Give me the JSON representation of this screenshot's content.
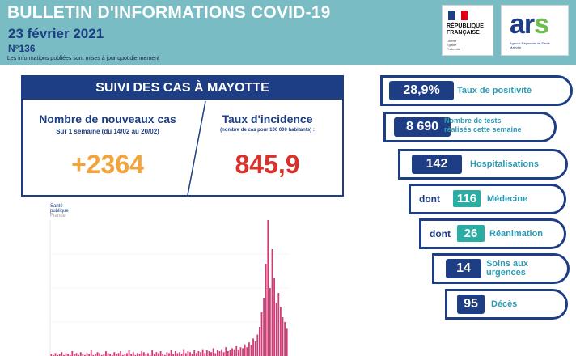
{
  "header": {
    "title": "BULLETIN D'INFORMATIONS COVID-19",
    "date": "23 février 2021",
    "number": "N°136",
    "note": "Les informations publiées sont mises à jour quotidiennement",
    "logo_rf": {
      "line1": "RÉPUBLIQUE",
      "line2": "FRANÇAISE",
      "motto1": "Liberté",
      "motto2": "Égalité",
      "motto3": "Fraternité"
    },
    "logo_ars": {
      "text_a": "ar",
      "text_s": "s",
      "sub1": "Agence Régionale de Santé",
      "sub2": "Mayotte"
    }
  },
  "suivi": {
    "heading": "SUIVI DES CAS À MAYOTTE",
    "left_title": "Nombre de nouveaux cas",
    "left_sub": "Sur 1 semaine (du 14/02 au 20/02)",
    "left_value": "+2364",
    "right_title": "Taux d'incidence",
    "right_sub": "(nombre de cas pour 100 000 habitants) :",
    "right_value": "845,9"
  },
  "sante_publique": {
    "line1": "Santé",
    "line2": "publique",
    "line3": "France"
  },
  "indicators": [
    {
      "value": "28,9%",
      "label": "Taux de positivité"
    },
    {
      "value": "8 690",
      "label_line1": "Nombre de tests",
      "label_line2": "réalisés cette semaine"
    },
    {
      "value": "142",
      "label": "Hospitalisations"
    },
    {
      "prefix": "dont",
      "value": "116",
      "label": "Médecine"
    },
    {
      "prefix": "dont",
      "value": "26",
      "label": "Réanimation"
    },
    {
      "value": "14",
      "label": "Soins aux urgences"
    },
    {
      "value": "95",
      "label": "Décès"
    }
  ],
  "colors": {
    "navy": "#1d3e84",
    "teal_header": "#79bcc4",
    "orange": "#f2a33a",
    "red": "#d9312b",
    "teal_label": "#2c9bb5",
    "teal_box": "#2bada4",
    "bars": "#d63a76"
  },
  "chart_data": {
    "type": "bar",
    "title": "",
    "xlabel": "",
    "ylabel": "",
    "values": [
      2,
      1,
      3,
      1,
      2,
      4,
      1,
      3,
      2,
      1,
      5,
      2,
      3,
      1,
      4,
      2,
      1,
      3,
      2,
      6,
      1,
      2,
      4,
      3,
      1,
      2,
      5,
      3,
      2,
      1,
      4,
      2,
      3,
      5,
      1,
      2,
      3,
      6,
      2,
      4,
      1,
      3,
      2,
      5,
      4,
      2,
      3,
      1,
      6,
      2,
      4,
      3,
      5,
      2,
      1,
      4,
      3,
      6,
      2,
      5,
      3,
      4,
      2,
      7,
      3,
      5,
      4,
      2,
      6,
      3,
      5,
      4,
      7,
      3,
      6,
      5,
      4,
      8,
      3,
      6,
      5,
      7,
      4,
      9,
      5,
      6,
      8,
      7,
      10,
      6,
      9,
      8,
      12,
      9,
      14,
      11,
      18,
      15,
      22,
      30,
      45,
      60,
      95,
      140,
      70,
      110,
      80,
      55,
      65,
      50,
      40,
      35,
      28
    ]
  }
}
